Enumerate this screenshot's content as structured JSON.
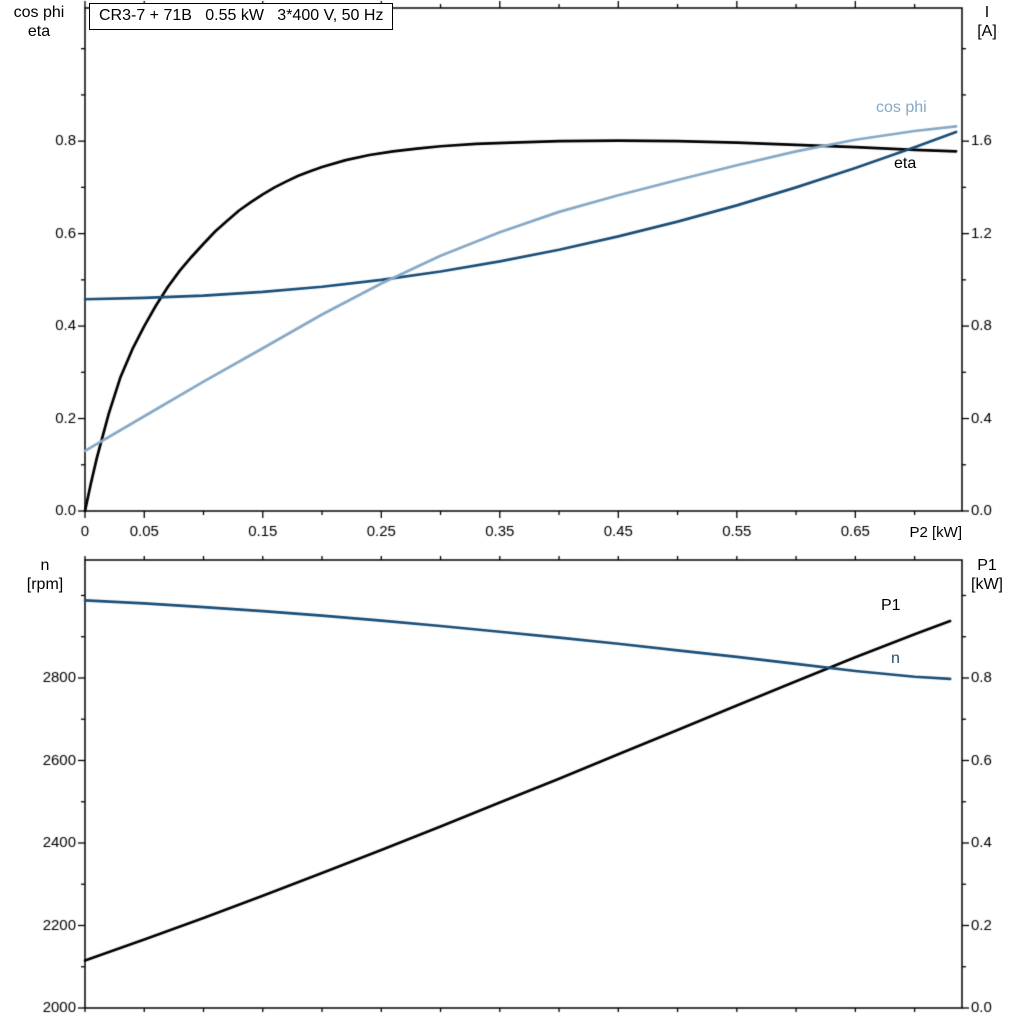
{
  "colors": {
    "background": "#ffffff",
    "axis": "#000000",
    "text": "#000000",
    "black_curve": "#000000",
    "dark_blue": "#1a4e78",
    "light_blue": "#86a9c7"
  },
  "labels": {
    "axis_titles": {
      "top_left_line1": "cos phi",
      "top_left_line2": "eta",
      "top_right_line1": "I",
      "top_right_line2": "[A]",
      "x_label": "P2 [kW]",
      "bottom_left_line1": "n",
      "bottom_left_line2": "[rpm]",
      "bottom_right_line1": "P1",
      "bottom_right_line2": "[kW]"
    },
    "curve_labels": {
      "cos_phi": "cos phi",
      "eta": "eta",
      "p1": "P1",
      "n": "n"
    }
  },
  "chart_data": [
    {
      "type": "line",
      "title": "CR3-7 + 71B   0.55 kW   3*400 V, 50 Hz",
      "x_axis": {
        "label": "P2 [kW]",
        "range": [
          0,
          0.74
        ],
        "minor_step": 0.05,
        "ticks": [
          {
            "v": 0,
            "t": "0"
          },
          {
            "v": 0.05,
            "t": "0.05"
          },
          {
            "v": 0.15,
            "t": "0.15"
          },
          {
            "v": 0.25,
            "t": "0.25"
          },
          {
            "v": 0.35,
            "t": "0.35"
          },
          {
            "v": 0.45,
            "t": "0.45"
          },
          {
            "v": 0.55,
            "t": "0.55"
          },
          {
            "v": 0.65,
            "t": "0.65"
          }
        ]
      },
      "left_axis": {
        "label": "cos phi / eta",
        "range": [
          0,
          1.088
        ],
        "minor_step": 0.1,
        "ticks": [
          {
            "v": 0,
            "t": "0.0"
          },
          {
            "v": 0.2,
            "t": "0.2"
          },
          {
            "v": 0.4,
            "t": "0.4"
          },
          {
            "v": 0.6,
            "t": "0.6"
          },
          {
            "v": 0.8,
            "t": "0.8"
          }
        ]
      },
      "right_axis": {
        "label": "I [A]",
        "range": [
          0,
          2.176
        ],
        "minor_step": 0.2,
        "ticks": [
          {
            "v": 0,
            "t": "0.0"
          },
          {
            "v": 0.4,
            "t": "0.4"
          },
          {
            "v": 0.8,
            "t": "0.8"
          },
          {
            "v": 1.2,
            "t": "1.2"
          },
          {
            "v": 1.6,
            "t": "1.6"
          }
        ]
      },
      "series": [
        {
          "name": "eta",
          "axis": "left",
          "color_key": "black_curve",
          "points": [
            [
              0,
              0
            ],
            [
              0.005,
              0.06
            ],
            [
              0.01,
              0.115
            ],
            [
              0.02,
              0.21
            ],
            [
              0.03,
              0.29
            ],
            [
              0.04,
              0.35
            ],
            [
              0.05,
              0.4
            ],
            [
              0.06,
              0.445
            ],
            [
              0.07,
              0.485
            ],
            [
              0.08,
              0.52
            ],
            [
              0.09,
              0.55
            ],
            [
              0.1,
              0.578
            ],
            [
              0.11,
              0.605
            ],
            [
              0.12,
              0.628
            ],
            [
              0.13,
              0.65
            ],
            [
              0.14,
              0.668
            ],
            [
              0.15,
              0.685
            ],
            [
              0.16,
              0.7
            ],
            [
              0.17,
              0.713
            ],
            [
              0.18,
              0.725
            ],
            [
              0.19,
              0.735
            ],
            [
              0.2,
              0.744
            ],
            [
              0.22,
              0.759
            ],
            [
              0.24,
              0.77
            ],
            [
              0.26,
              0.778
            ],
            [
              0.28,
              0.784
            ],
            [
              0.3,
              0.789
            ],
            [
              0.33,
              0.794
            ],
            [
              0.36,
              0.797
            ],
            [
              0.4,
              0.8
            ],
            [
              0.45,
              0.801
            ],
            [
              0.5,
              0.8
            ],
            [
              0.55,
              0.797
            ],
            [
              0.6,
              0.792
            ],
            [
              0.65,
              0.787
            ],
            [
              0.7,
              0.781
            ],
            [
              0.735,
              0.778
            ]
          ]
        },
        {
          "name": "I",
          "axis": "right",
          "color_key": "dark_blue",
          "points": [
            [
              0,
              0.916
            ],
            [
              0.05,
              0.922
            ],
            [
              0.1,
              0.932
            ],
            [
              0.15,
              0.948
            ],
            [
              0.2,
              0.97
            ],
            [
              0.25,
              1.0
            ],
            [
              0.3,
              1.036
            ],
            [
              0.35,
              1.08
            ],
            [
              0.4,
              1.13
            ],
            [
              0.45,
              1.188
            ],
            [
              0.5,
              1.252
            ],
            [
              0.55,
              1.322
            ],
            [
              0.6,
              1.4
            ],
            [
              0.65,
              1.484
            ],
            [
              0.7,
              1.574
            ],
            [
              0.735,
              1.64
            ]
          ]
        },
        {
          "name": "cos phi",
          "axis": "left",
          "color_key": "light_blue",
          "points": [
            [
              0,
              0.13
            ],
            [
              0.05,
              0.205
            ],
            [
              0.1,
              0.28
            ],
            [
              0.15,
              0.352
            ],
            [
              0.2,
              0.425
            ],
            [
              0.25,
              0.492
            ],
            [
              0.3,
              0.552
            ],
            [
              0.35,
              0.603
            ],
            [
              0.4,
              0.647
            ],
            [
              0.45,
              0.683
            ],
            [
              0.5,
              0.716
            ],
            [
              0.55,
              0.748
            ],
            [
              0.6,
              0.778
            ],
            [
              0.65,
              0.803
            ],
            [
              0.7,
              0.822
            ],
            [
              0.735,
              0.832
            ]
          ]
        }
      ]
    },
    {
      "type": "line",
      "x_axis": {
        "label": "",
        "range": [
          0,
          0.74
        ],
        "minor_step": 0.05,
        "ticks": []
      },
      "left_axis": {
        "label": "n [rpm]",
        "range": [
          2000,
          3086
        ],
        "minor_step": 100,
        "ticks": [
          {
            "v": 2000,
            "t": "2000"
          },
          {
            "v": 2200,
            "t": "2200"
          },
          {
            "v": 2400,
            "t": "2400"
          },
          {
            "v": 2600,
            "t": "2600"
          },
          {
            "v": 2800,
            "t": "2800"
          }
        ]
      },
      "right_axis": {
        "label": "P1 [kW]",
        "range": [
          0,
          1.086
        ],
        "minor_step": 0.1,
        "ticks": [
          {
            "v": 0,
            "t": "0.0"
          },
          {
            "v": 0.2,
            "t": "0.2"
          },
          {
            "v": 0.4,
            "t": "0.4"
          },
          {
            "v": 0.6,
            "t": "0.6"
          },
          {
            "v": 0.8,
            "t": "0.8"
          }
        ]
      },
      "series": [
        {
          "name": "P1",
          "axis": "right",
          "color_key": "black_curve",
          "points": [
            [
              0,
              0.115
            ],
            [
              0.05,
              0.166
            ],
            [
              0.1,
              0.218
            ],
            [
              0.15,
              0.272
            ],
            [
              0.2,
              0.327
            ],
            [
              0.25,
              0.383
            ],
            [
              0.3,
              0.44
            ],
            [
              0.35,
              0.498
            ],
            [
              0.4,
              0.556
            ],
            [
              0.45,
              0.615
            ],
            [
              0.5,
              0.674
            ],
            [
              0.55,
              0.733
            ],
            [
              0.6,
              0.792
            ],
            [
              0.65,
              0.85
            ],
            [
              0.7,
              0.906
            ],
            [
              0.73,
              0.938
            ]
          ]
        },
        {
          "name": "n",
          "axis": "left",
          "color_key": "dark_blue",
          "points": [
            [
              0,
              2988
            ],
            [
              0.05,
              2981
            ],
            [
              0.1,
              2972
            ],
            [
              0.15,
              2962
            ],
            [
              0.2,
              2951
            ],
            [
              0.25,
              2939
            ],
            [
              0.3,
              2926
            ],
            [
              0.35,
              2912
            ],
            [
              0.4,
              2898
            ],
            [
              0.45,
              2883
            ],
            [
              0.5,
              2867
            ],
            [
              0.55,
              2851
            ],
            [
              0.6,
              2834
            ],
            [
              0.65,
              2817
            ],
            [
              0.7,
              2803
            ],
            [
              0.73,
              2798
            ]
          ]
        }
      ]
    }
  ]
}
